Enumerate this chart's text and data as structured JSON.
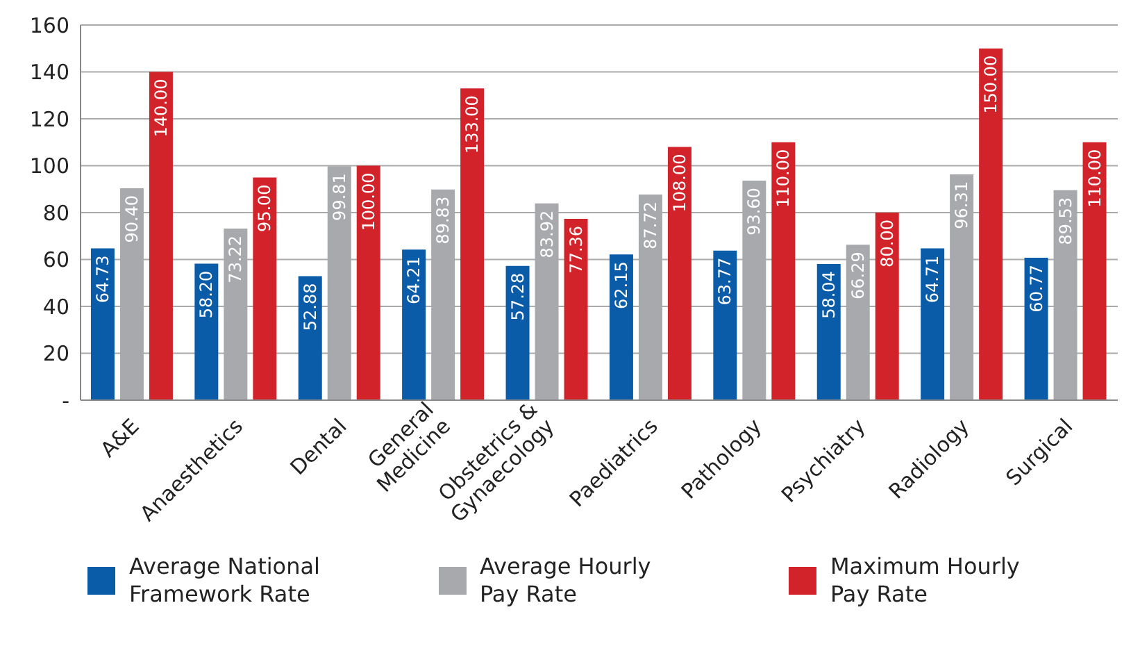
{
  "chart_data": {
    "type": "bar",
    "categories": [
      "A&E",
      "Anaesthetics",
      "Dental",
      "General Medicine",
      "Obstetrics & Gynaecology",
      "Paediatrics",
      "Pathology",
      "Psychiatry",
      "Radiology",
      "Surgical"
    ],
    "series": [
      {
        "name": "Average National Framework Rate",
        "color": "#0a5ca8",
        "values": [
          64.73,
          58.2,
          52.88,
          64.21,
          57.28,
          62.15,
          63.77,
          58.04,
          64.71,
          60.77
        ],
        "value_labels": [
          "64.73",
          "58.20",
          "52.88",
          "64.21",
          "57.28",
          "62.15",
          "63.77",
          "58.04",
          "64.71",
          "60.77"
        ]
      },
      {
        "name": "Average Hourly Pay Rate",
        "color": "#a7a9ac",
        "values": [
          90.4,
          73.22,
          99.81,
          89.83,
          83.92,
          87.72,
          93.6,
          66.29,
          96.31,
          89.53
        ],
        "value_labels": [
          "90.40",
          "73.22",
          "99.81",
          "89.83",
          "83.92",
          "87.72",
          "93.60",
          "66.29",
          "96.31",
          "89.53"
        ]
      },
      {
        "name": "Maximum Hourly Pay Rate",
        "color": "#d2232a",
        "values": [
          140,
          95,
          100,
          133,
          77.36,
          108,
          110,
          80,
          150,
          110
        ],
        "value_labels": [
          "140.00",
          "95.00",
          "100.00",
          "133.00",
          "77.36",
          "108.00",
          "110.00",
          "80.00",
          "150.00",
          "110.00"
        ]
      }
    ],
    "ylim": [
      0,
      160
    ],
    "yticks": [
      {
        "value": 0,
        "label": "-"
      },
      20,
      40,
      60,
      80,
      100,
      120,
      140,
      160
    ],
    "grid": "y",
    "legend": "bottom"
  }
}
